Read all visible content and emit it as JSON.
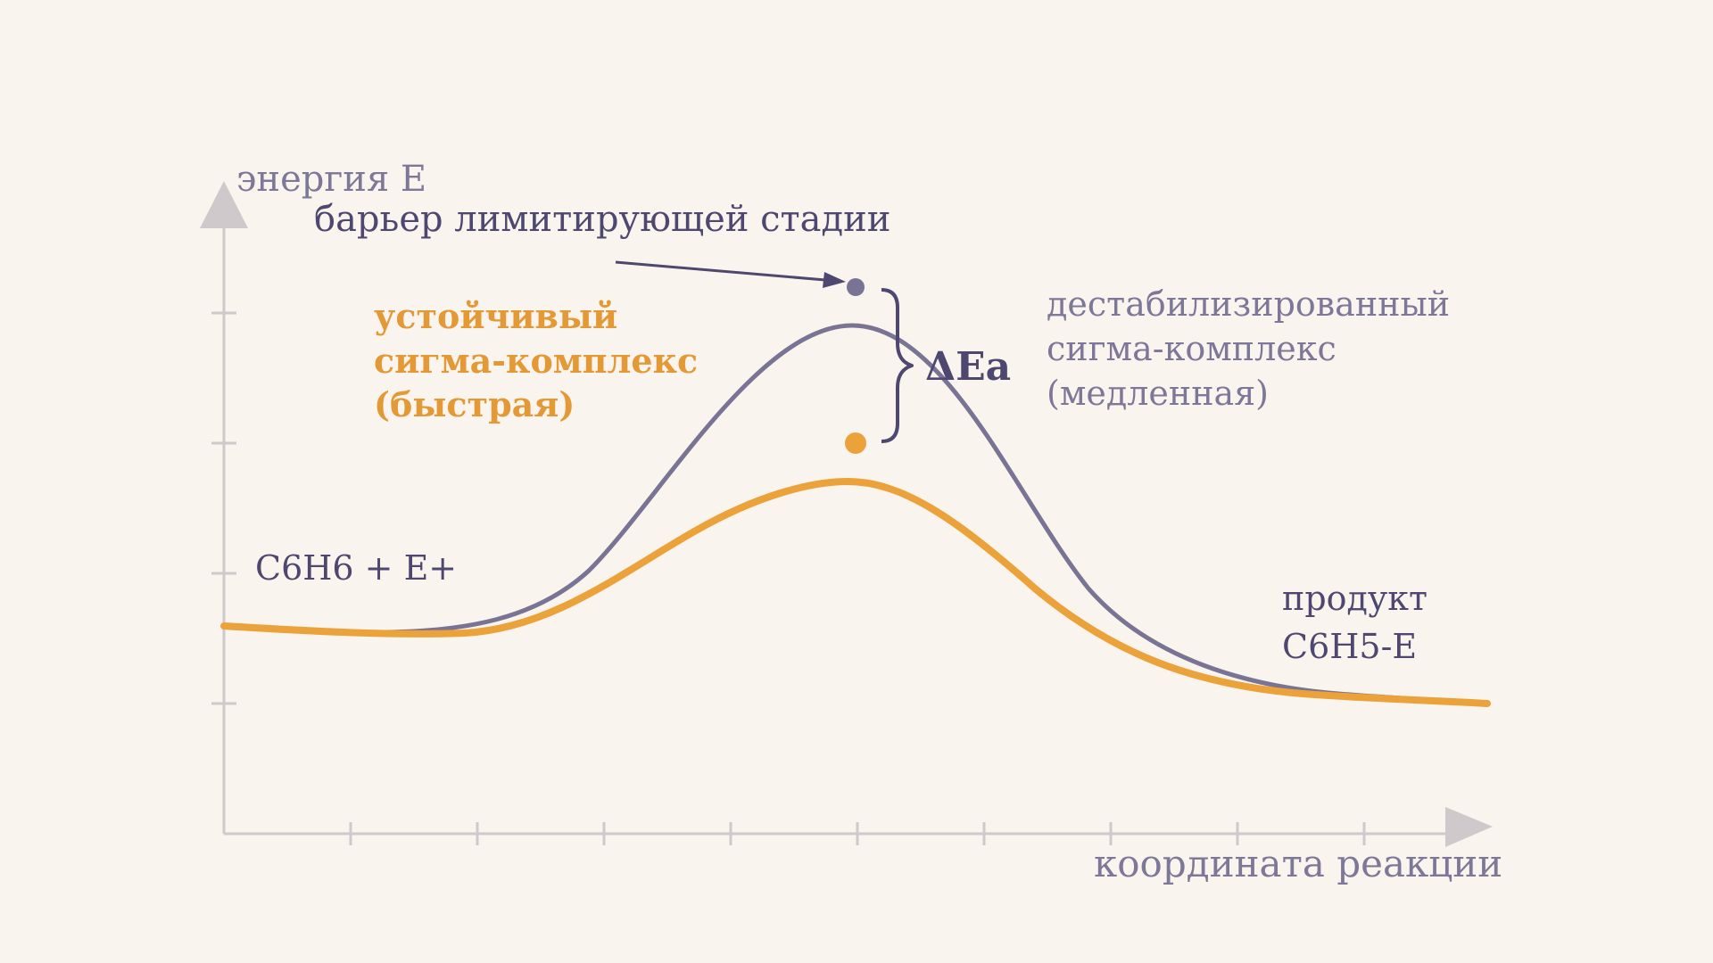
{
  "colors": {
    "background": "#FAF4EE",
    "axis": "#CFC9CB",
    "slow_curve": "#7A7494",
    "fast_curve": "#EBA23A",
    "dark_text": "#4E4870",
    "muted_text": "#7E7898",
    "orange_text": "#E39A36"
  },
  "axes": {
    "y_label": "энергия E",
    "x_label": "координата реакции"
  },
  "labels": {
    "barrier": "барьер лимитирующей стадии",
    "stable_line1": "устойчивый",
    "stable_line2": "сигма-комплекс",
    "stable_line3": "(быстрая)",
    "destab_line1": "дестабилизированный",
    "destab_line2": "сигма-комплекс",
    "destab_line3": "(медленная)",
    "delta_ea": "ΔEa",
    "reactants": "C6H6 + E+",
    "product_line1": "продукт",
    "product_line2": "C6H5-E"
  },
  "icons": {
    "y_arrow": "up-triangle-arrow-icon",
    "x_arrow": "right-triangle-arrow-icon"
  }
}
